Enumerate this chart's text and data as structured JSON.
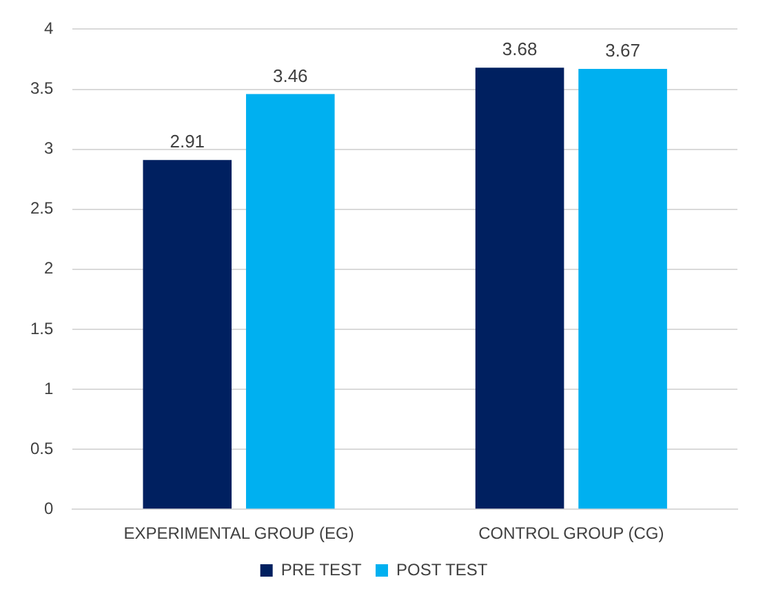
{
  "chart_data": {
    "type": "bar",
    "categories": [
      "EXPERIMENTAL GROUP (EG)",
      "CONTROL GROUP (CG)"
    ],
    "series": [
      {
        "name": "PRE TEST",
        "color": "#002060",
        "values": [
          2.91,
          3.68
        ]
      },
      {
        "name": "POST TEST",
        "color": "#00b0f0",
        "values": [
          3.46,
          3.67
        ]
      }
    ],
    "ylim": [
      0,
      4
    ],
    "yticks": [
      0,
      0.5,
      1,
      1.5,
      2,
      2.5,
      3,
      3.5,
      4
    ],
    "grid": "y",
    "legend": "bottom",
    "data_labels": true
  }
}
